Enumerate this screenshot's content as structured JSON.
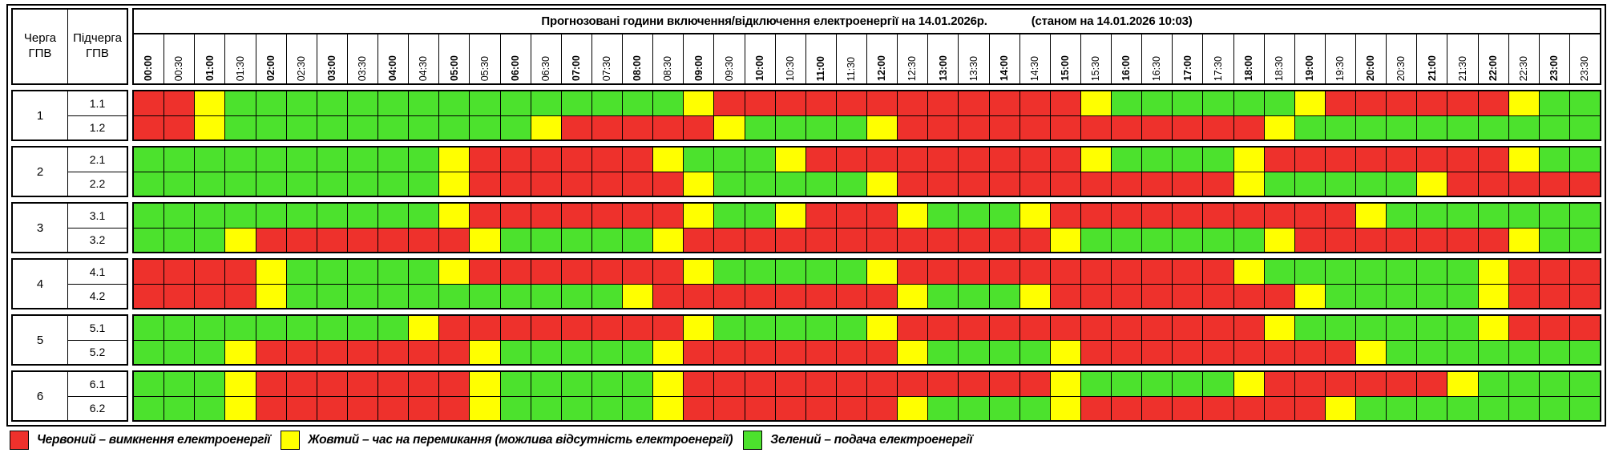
{
  "title": {
    "main": "Прогнозовані години включення/відключення електроенергії на 14.01.2026р.",
    "as_of": "(станом на 14.01.2026 10:03)"
  },
  "corner": {
    "queue_header": "Черга\nГПВ",
    "subqueue_header": "Підчерга\nГПВ"
  },
  "time_labels": [
    "00:00",
    "00:30",
    "01:00",
    "01:30",
    "02:00",
    "02:30",
    "03:00",
    "03:30",
    "04:00",
    "04:30",
    "05:00",
    "05:30",
    "06:00",
    "06:30",
    "07:00",
    "07:30",
    "08:00",
    "08:30",
    "09:00",
    "09:30",
    "10:00",
    "10:30",
    "11:00",
    "11:30",
    "12:00",
    "12:30",
    "13:00",
    "13:30",
    "14:00",
    "14:30",
    "15:00",
    "15:30",
    "16:00",
    "16:30",
    "17:00",
    "17:30",
    "18:00",
    "18:30",
    "19:00",
    "19:30",
    "20:00",
    "20:30",
    "21:00",
    "21:30",
    "22:00",
    "22:30",
    "23:00",
    "23:30"
  ],
  "colors": {
    "R": "#ee312c",
    "Y": "#ffff00",
    "G": "#4ce22d"
  },
  "groups": [
    {
      "queue": "1",
      "rows": [
        {
          "label": "1.1",
          "slots": "RRYGGGGGGGGGGGGGGGYRRRRRRRRRRRRYGGGGGGYRRRRRRYGG"
        },
        {
          "label": "1.2",
          "slots": "RRYGGGGGGGGGGYRRRRRYGGGGYRRRRRRRRRRRRYGGGGGGGGGG"
        }
      ]
    },
    {
      "queue": "2",
      "rows": [
        {
          "label": "2.1",
          "slots": "GGGGGGGGGGYRRRRRRYGGGYRRRRRRRRRYGGGGYRRRRRRRRYGG"
        },
        {
          "label": "2.2",
          "slots": "GGGGGGGGGGYRRRRRRRYGGGGGYRRRRRRRRRRRYGGGGGYRRRRR"
        }
      ]
    },
    {
      "queue": "3",
      "rows": [
        {
          "label": "3.1",
          "slots": "GGGGGGGGGGYRRRRRRRYGGYRRRYGGGYRRRRRRRRRRYGGGGGGG"
        },
        {
          "label": "3.2",
          "slots": "GGGYRRRRRRRYGGGGGYRRRRRRRRRRRRYGGGGGGYRRRRRRRYGG"
        }
      ]
    },
    {
      "queue": "4",
      "rows": [
        {
          "label": "4.1",
          "slots": "RRRRYGGGGGYRRRRRRRYGGGGGYRRRRRRRRRRRYGGGGGGGYRRR"
        },
        {
          "label": "4.2",
          "slots": "RRRRYGGGGGGGGGGGYRRRRRRRRYGGGYRRRRRRRRYGGGGGYRRR"
        }
      ]
    },
    {
      "queue": "5",
      "rows": [
        {
          "label": "5.1",
          "slots": "GGGGGGGGGYRRRRRRRRYGGGGGYRRRRRRRRRRRRYGGGGGGYRRR"
        },
        {
          "label": "5.2",
          "slots": "GGGYRRRRRRRYGGGGGYRRRRRRRYGGGGYRRRRRRRRRYGGGGGGG"
        }
      ]
    },
    {
      "queue": "6",
      "rows": [
        {
          "label": "6.1",
          "slots": "GGGYRRRRRRRYGGGGGYRRRRRRRRRRRRYGGGGGYRRRRRRYGGGG"
        },
        {
          "label": "6.2",
          "slots": "GGGYRRRRRRRYGGGGGYRRRRRRRYGGGGYRRRRRRRRYGGGGGGGG"
        }
      ]
    }
  ],
  "legend": [
    {
      "state": "R",
      "label": "Червоний – вимкнення електроенергії"
    },
    {
      "state": "Y",
      "label": "Жовтий – час на перемикання (можлива відсутність електроенергії)"
    },
    {
      "state": "G",
      "label": "Зелений – подача електроенергії"
    }
  ],
  "chart_data": {
    "type": "heatmap",
    "title": "Прогнозовані години включення/відключення електроенергії на 14.01.2026р. (станом на 14.01.2026 10:03)",
    "x": [
      "00:00",
      "00:30",
      "01:00",
      "01:30",
      "02:00",
      "02:30",
      "03:00",
      "03:30",
      "04:00",
      "04:30",
      "05:00",
      "05:30",
      "06:00",
      "06:30",
      "07:00",
      "07:30",
      "08:00",
      "08:30",
      "09:00",
      "09:30",
      "10:00",
      "10:30",
      "11:00",
      "11:30",
      "12:00",
      "12:30",
      "13:00",
      "13:30",
      "14:00",
      "14:30",
      "15:00",
      "15:30",
      "16:00",
      "16:30",
      "17:00",
      "17:30",
      "18:00",
      "18:30",
      "19:00",
      "19:30",
      "20:00",
      "20:30",
      "21:00",
      "21:30",
      "22:00",
      "22:30",
      "23:00",
      "23:30"
    ],
    "value_legend": {
      "R": "вимкнення електроенергії",
      "Y": "час на перемикання (можлива відсутність електроенергії)",
      "G": "подача електроенергії"
    },
    "series": [
      {
        "name": "1.1",
        "values": "RRYGGGGGGGGGGGGGGGYRRRRRRRRRRRRYGGGGGGYRRRRRRYGG"
      },
      {
        "name": "1.2",
        "values": "RRYGGGGGGGGGGYRRRRRYGGGGYRRRRRRRRRRRRYGGGGGGGGGG"
      },
      {
        "name": "2.1",
        "values": "GGGGGGGGGGYRRRRRRYGGGYRRRRRRRRRYGGGGYRRRRRRRRYGG"
      },
      {
        "name": "2.2",
        "values": "GGGGGGGGGGYRRRRRRRYGGGGGYRRRRRRRRRRRYGGGGGYRRRRR"
      },
      {
        "name": "3.1",
        "values": "GGGGGGGGGGYRRRRRRRYGGYRRRYGGGYRRRRRRRRRRYGGGGGGG"
      },
      {
        "name": "3.2",
        "values": "GGGYRRRRRRRYGGGGGYRRRRRRRRRRRRYGGGGGGYRRRRRRRYGG"
      },
      {
        "name": "4.1",
        "values": "RRRRYGGGGGYRRRRRRRYGGGGGYRRRRRRRRRRRYGGGGGGGYRRR"
      },
      {
        "name": "4.2",
        "values": "RRRRYGGGGGGGGGGGYRRRRRRRRYGGGYRRRRRRRRYGGGGGYRRR"
      },
      {
        "name": "5.1",
        "values": "GGGGGGGGGYRRRRRRRRYGGGGGYRRRRRRRRRRRRYGGGGGGYRRR"
      },
      {
        "name": "5.2",
        "values": "GGGYRRRRRRRYGGGGGYRRRRRRRYGGGGYRRRRRRRRRYGGGGGGG"
      },
      {
        "name": "6.1",
        "values": "GGGYRRRRRRRYGGGGGYRRRRRRRRRRRRYGGGGGYRRRRRRYGGGG"
      },
      {
        "name": "6.2",
        "values": "GGGYRRRRRRRYGGGGGYRRRRRRRYGGGGYRRRRRRRRYGGGGGGGG"
      }
    ]
  }
}
